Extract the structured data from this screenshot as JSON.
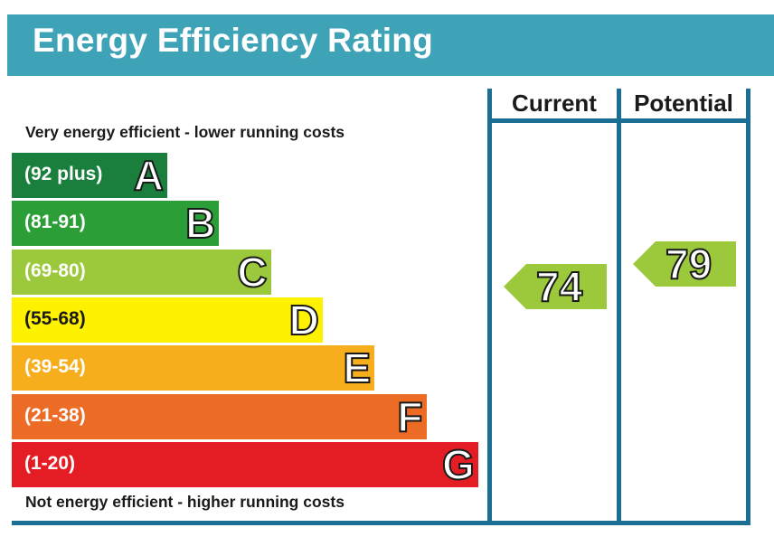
{
  "header": {
    "title": "Energy Efficiency Rating"
  },
  "notes": {
    "top": "Very energy efficient - lower running costs",
    "bottom": "Not energy efficient - higher running costs"
  },
  "columns": {
    "current": "Current",
    "potential": "Potential"
  },
  "chart_data": {
    "type": "bar",
    "title": "Energy Efficiency Rating",
    "bands": [
      {
        "range": "(92 plus)",
        "letter": "A",
        "color": "#1a7f3c",
        "min": 92,
        "max": 100
      },
      {
        "range": "(81-91)",
        "letter": "B",
        "color": "#2b9e38",
        "min": 81,
        "max": 91
      },
      {
        "range": "(69-80)",
        "letter": "C",
        "color": "#9cc93b",
        "min": 69,
        "max": 80
      },
      {
        "range": "(55-68)",
        "letter": "D",
        "color": "#fef200",
        "min": 55,
        "max": 68
      },
      {
        "range": "(39-54)",
        "letter": "E",
        "color": "#f7ae1d",
        "min": 39,
        "max": 54
      },
      {
        "range": "(21-38)",
        "letter": "F",
        "color": "#ec6b25",
        "min": 21,
        "max": 38
      },
      {
        "range": "(1-20)",
        "letter": "G",
        "color": "#e31d23",
        "min": 1,
        "max": 20
      }
    ],
    "current": {
      "value": 74,
      "band": "C"
    },
    "potential": {
      "value": 79,
      "band": "C"
    }
  }
}
